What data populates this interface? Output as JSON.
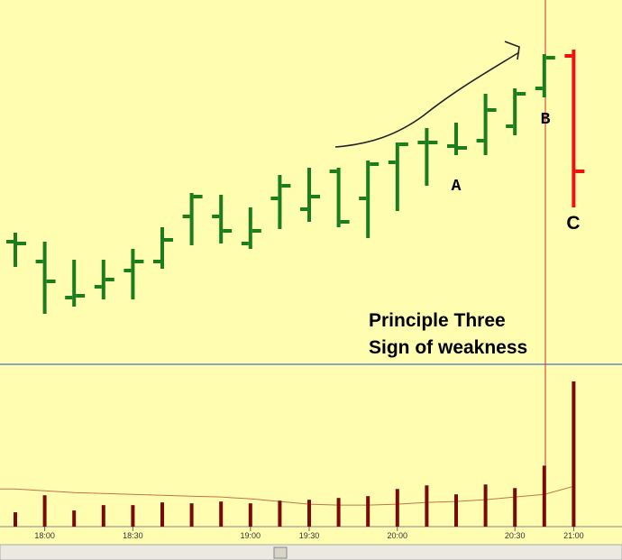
{
  "chart_data": [
    {
      "type": "ohlc",
      "ylim": [
        0,
        400
      ],
      "open": [
        132,
        110,
        70,
        82,
        100,
        110,
        160,
        160,
        130,
        180,
        168,
        210,
        180,
        220,
        242,
        238,
        244,
        260,
        302,
        338
      ],
      "high": [
        142,
        132,
        112,
        112,
        124,
        148,
        186,
        184,
        170,
        206,
        214,
        214,
        222,
        242,
        258,
        264,
        296,
        302,
        340,
        345
      ],
      "low": [
        104,
        52,
        60,
        68,
        68,
        102,
        128,
        130,
        124,
        146,
        154,
        148,
        136,
        166,
        194,
        228,
        228,
        250,
        292,
        170
      ],
      "close": [
        130,
        88,
        72,
        90,
        110,
        134,
        182,
        144,
        144,
        194,
        182,
        154,
        218,
        240,
        242,
        236,
        278,
        296,
        336,
        210
      ],
      "colors": [
        "#1b7d1b",
        "#1b7d1b",
        "#1b7d1b",
        "#1b7d1b",
        "#1b7d1b",
        "#1b7d1b",
        "#1b7d1b",
        "#1b7d1b",
        "#1b7d1b",
        "#1b7d1b",
        "#1b7d1b",
        "#1b7d1b",
        "#1b7d1b",
        "#1b7d1b",
        "#1b7d1b",
        "#1b7d1b",
        "#1b7d1b",
        "#1b7d1b",
        "#1b7d1b",
        "#ee1111"
      ],
      "annotations": [
        "A",
        "B",
        "C"
      ],
      "title_lines": [
        "Principle Three",
        "Sign of weakness"
      ]
    },
    {
      "type": "bar",
      "categories": [
        null,
        "18:00",
        null,
        null,
        "18:30",
        null,
        null,
        null,
        "19:00",
        null,
        "19:30",
        null,
        null,
        "20:00",
        null,
        null,
        null,
        "20:30",
        null,
        "21:00"
      ],
      "values": [
        16,
        35,
        18,
        24,
        24,
        27,
        26,
        28,
        26,
        29,
        30,
        32,
        34,
        42,
        46,
        36,
        47,
        43,
        68,
        162
      ],
      "color": "#7a0a0a",
      "average": [
        42,
        40,
        38,
        37,
        36,
        35,
        34,
        33,
        31,
        28,
        25,
        24,
        24,
        25,
        27,
        28,
        30,
        33,
        36,
        45
      ],
      "average_color": "#c8704c",
      "ylim": [
        0,
        179
      ]
    }
  ]
}
